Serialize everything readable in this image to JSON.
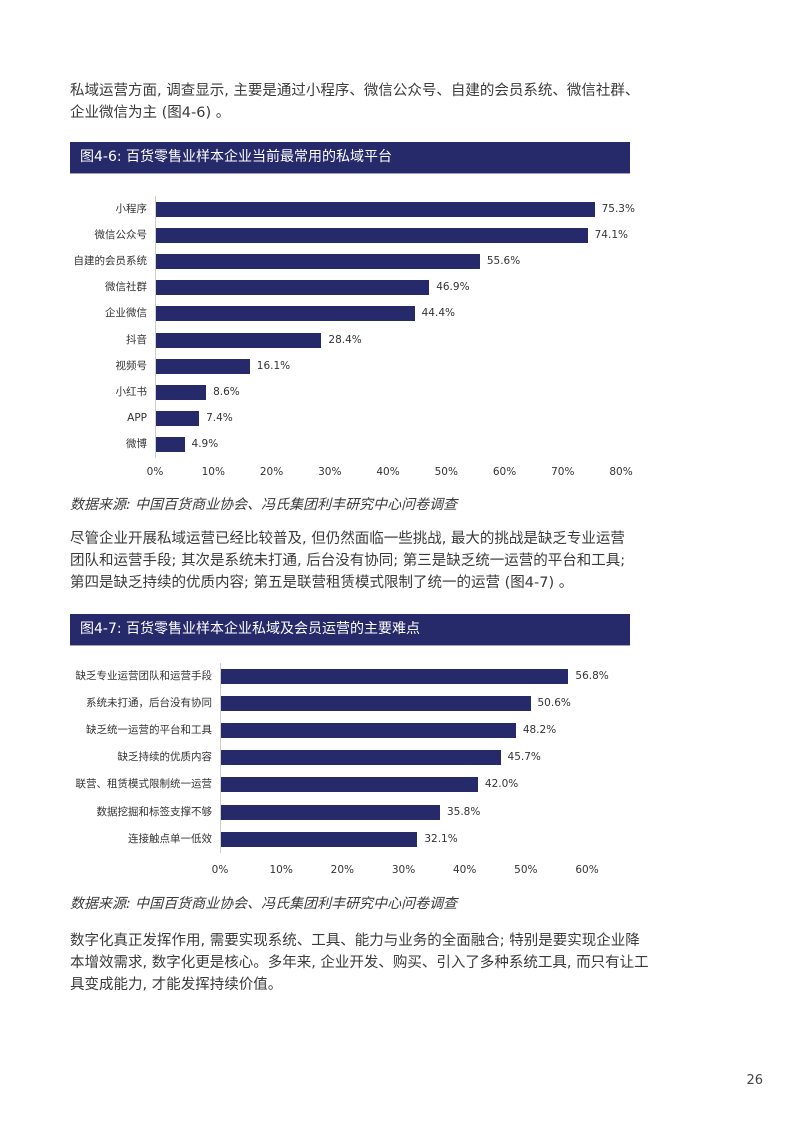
{
  "intro_paragraph": {
    "lines": [
      "私域运营方面, 调查显示, 主要是通过小程序、微信公众号、自建的会员系统、微信社群、",
      "企业微信为主 (图4-6) 。"
    ]
  },
  "figure_4_6": {
    "title": "图4-6: 百货零售业样本企业当前最常用的私域平台",
    "source": "数据来源: 中国百货商业协会、冯氏集团利丰研究中心问卷调查"
  },
  "middle_paragraph": {
    "lines": [
      "尽管企业开展私域运营已经比较普及, 但仍然面临一些挑战, 最大的挑战是缺乏专业运营",
      "团队和运营手段; 其次是系统未打通, 后台没有协同; 第三是缺乏统一运营的平台和工具;",
      "第四是缺乏持续的优质内容; 第五是联营租赁模式限制了统一的运营 (图4-7) 。"
    ]
  },
  "figure_4_7": {
    "title": "图4-7: 百货零售业样本企业私域及会员运营的主要难点",
    "source": "数据来源: 中国百货商业协会、冯氏集团利丰研究中心问卷调查"
  },
  "closing_paragraph": {
    "lines": [
      "数字化真正发挥作用, 需要实现系统、工具、能力与业务的全面融合; 特别是要实现企业降",
      "本增效需求, 数字化更是核心。多年来, 企业开发、购买、引入了多种系统工具, 而只有让工",
      "具变成能力, 才能发挥持续价值。"
    ]
  },
  "page_number": "26",
  "colors": {
    "bar": "#26296a",
    "header_bg": "#26296a",
    "header_text": "#ffffff"
  },
  "chart_data": [
    {
      "type": "bar",
      "orientation": "horizontal",
      "title": "图4-6: 百货零售业样本企业当前最常用的私域平台",
      "categories": [
        "小程序",
        "微信公众号",
        "自建的会员系统",
        "微信社群",
        "企业微信",
        "抖音",
        "视频号",
        "小红书",
        "APP",
        "微博"
      ],
      "values": [
        75.3,
        74.1,
        55.6,
        46.9,
        44.4,
        28.4,
        16.1,
        8.6,
        7.4,
        4.9
      ],
      "value_labels": [
        "75.3%",
        "74.1%",
        "55.6%",
        "46.9%",
        "44.4%",
        "28.4%",
        "16.1%",
        "8.6%",
        "7.4%",
        "4.9%"
      ],
      "xlabel": "",
      "ylabel": "",
      "xlim": [
        0,
        80
      ],
      "xticks": [
        "0%",
        "10%",
        "20%",
        "30%",
        "40%",
        "50%",
        "60%",
        "70%",
        "80%"
      ],
      "grid": false,
      "legend": null
    },
    {
      "type": "bar",
      "orientation": "horizontal",
      "title": "图4-7: 百货零售业样本企业私域及会员运营的主要难点",
      "categories": [
        "缺乏专业运营团队和运营手段",
        "系统未打通，后台没有协同",
        "缺乏统一运营的平台和工具",
        "缺乏持续的优质内容",
        "联营、租赁模式限制统一运营",
        "数据挖掘和标签支撑不够",
        "连接触点单一低效"
      ],
      "values": [
        56.8,
        50.6,
        48.2,
        45.7,
        42.0,
        35.8,
        32.1
      ],
      "value_labels": [
        "56.8%",
        "50.6%",
        "48.2%",
        "45.7%",
        "42.0%",
        "35.8%",
        "32.1%"
      ],
      "xlabel": "",
      "ylabel": "",
      "xlim": [
        0,
        60
      ],
      "xticks": [
        "0%",
        "10%",
        "20%",
        "30%",
        "40%",
        "50%",
        "60%"
      ],
      "grid": false,
      "legend": null
    }
  ]
}
